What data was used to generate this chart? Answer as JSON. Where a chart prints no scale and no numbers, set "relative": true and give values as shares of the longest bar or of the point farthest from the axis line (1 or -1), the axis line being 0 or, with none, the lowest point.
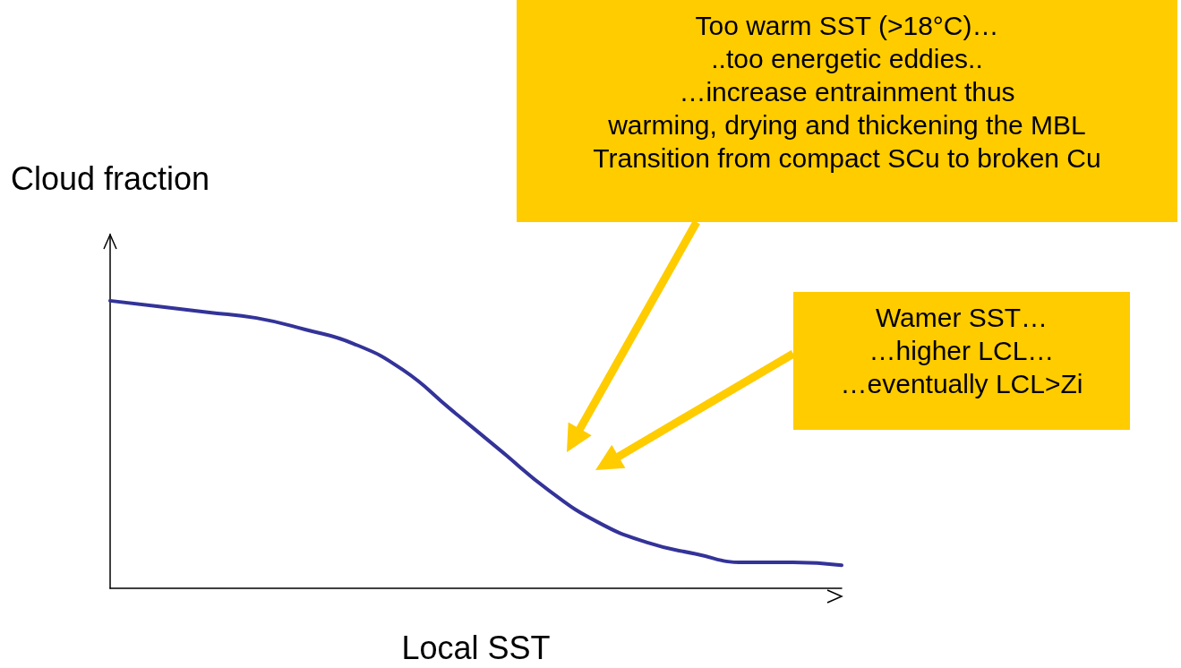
{
  "chart_data": {
    "type": "line",
    "relative": true,
    "xlabel": "Local SST",
    "ylabel": "Cloud fraction",
    "categories": [
      null,
      null,
      null,
      null,
      null,
      null,
      null,
      null,
      null,
      null,
      null,
      null,
      null,
      null,
      null,
      null
    ],
    "series": [
      {
        "color": "#333399",
        "values": [
          1.0,
          0.98,
          0.96,
          0.94,
          0.9,
          0.85,
          0.76,
          0.62,
          0.48,
          0.34,
          0.23,
          0.16,
          0.12,
          0.09,
          0.09,
          0.08
        ]
      }
    ],
    "marker": "none",
    "line_style": "solid",
    "grid": false,
    "annotations": [
      "Too warm SST (>18°C)…\n..too energetic eddies..\n…increase entrainment thus\nwarming, drying and thickening the MBL\nTransition from compact SCu to broken Cu",
      "Wamer SST…\n…higher LCL…\n…eventually LCL>Zi"
    ]
  }
}
